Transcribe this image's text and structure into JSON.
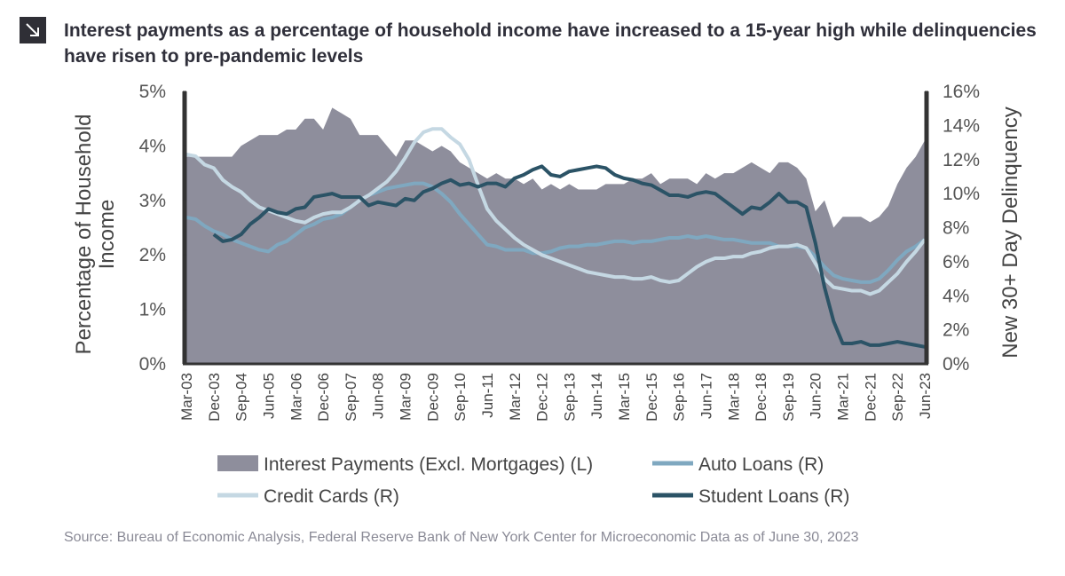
{
  "chart_data": {
    "type": "area-line",
    "title": "Interest payments as a percentage of household income have increased to a 15-year high while delinquencies have risen to pre-pandemic levels",
    "y_label": "Percentage of Household Income",
    "y2_label": "New 30+ Day Delinquency",
    "source": "Source: Bureau of Economic Analysis, Federal Reserve Bank of New York Center for Microeconomic Data as of June 30, 2023",
    "categories": [
      "Mar-03",
      null,
      null,
      "Dec-03",
      null,
      null,
      "Sep-04",
      null,
      null,
      "Jun-05",
      null,
      null,
      "Mar-06",
      null,
      null,
      "Dec-06",
      null,
      null,
      "Sep-07",
      null,
      null,
      "Jun-08",
      null,
      null,
      "Mar-09",
      null,
      null,
      "Dec-09",
      null,
      null,
      "Sep-10",
      null,
      null,
      "Jun-11",
      null,
      null,
      "Mar-12",
      null,
      null,
      "Dec-12",
      null,
      null,
      "Sep-13",
      null,
      null,
      "Jun-14",
      null,
      null,
      "Mar-15",
      null,
      null,
      "Dec-15",
      null,
      null,
      "Sep-16",
      null,
      null,
      "Jun-17",
      null,
      null,
      "Mar-18",
      null,
      null,
      "Dec-18",
      null,
      null,
      "Sep-19",
      null,
      null,
      "Jun-20",
      null,
      null,
      "Mar-21",
      null,
      null,
      "Dec-21",
      null,
      null,
      "Sep-22",
      null,
      null,
      "Jun-23"
    ],
    "ylim": [
      0,
      5
    ],
    "yticks": [
      {
        "value": 0,
        "label": "0%"
      },
      {
        "value": 1,
        "label": "1%"
      },
      {
        "value": 2,
        "label": "2%"
      },
      {
        "value": 3,
        "label": "3%"
      },
      {
        "value": 4,
        "label": "4%"
      },
      {
        "value": 5,
        "label": "5%"
      }
    ],
    "y2lim": [
      0,
      16
    ],
    "y2ticks": [
      {
        "value": 0,
        "label": "0%"
      },
      {
        "value": 2,
        "label": "2%"
      },
      {
        "value": 4,
        "label": "4%"
      },
      {
        "value": 6,
        "label": "6%"
      },
      {
        "value": 8,
        "label": "8%"
      },
      {
        "value": 10,
        "label": "10%"
      },
      {
        "value": 12,
        "label": "12%"
      },
      {
        "value": 14,
        "label": "14%"
      },
      {
        "value": 16,
        "label": "16%"
      }
    ],
    "grid": false,
    "series": [
      {
        "name": "Interest Payments (Excl. Mortgages) (L)",
        "type": "area",
        "axis": "y",
        "color": "#8e8e9c",
        "values": [
          3.8,
          3.8,
          3.8,
          3.8,
          3.8,
          3.8,
          4.0,
          4.1,
          4.2,
          4.2,
          4.2,
          4.3,
          4.3,
          4.5,
          4.5,
          4.3,
          4.7,
          4.6,
          4.5,
          4.2,
          4.2,
          4.2,
          4.0,
          3.8,
          4.1,
          4.1,
          4.0,
          3.9,
          4.0,
          3.9,
          3.7,
          3.6,
          3.5,
          3.4,
          3.5,
          3.4,
          3.4,
          3.3,
          3.4,
          3.2,
          3.3,
          3.2,
          3.3,
          3.2,
          3.2,
          3.2,
          3.3,
          3.3,
          3.3,
          3.4,
          3.4,
          3.5,
          3.3,
          3.4,
          3.4,
          3.4,
          3.3,
          3.5,
          3.4,
          3.5,
          3.5,
          3.6,
          3.7,
          3.6,
          3.5,
          3.7,
          3.7,
          3.6,
          3.4,
          2.8,
          3.0,
          2.5,
          2.7,
          2.7,
          2.7,
          2.6,
          2.7,
          2.9,
          3.3,
          3.6,
          3.8,
          4.1
        ]
      },
      {
        "name": "Auto Loans (R)",
        "type": "line",
        "axis": "y2",
        "color": "#7fa8c0",
        "values": [
          8.6,
          8.5,
          8.1,
          7.8,
          7.6,
          7.3,
          7.1,
          6.9,
          6.7,
          6.6,
          7.0,
          7.2,
          7.6,
          8.0,
          8.2,
          8.5,
          8.6,
          8.8,
          9.2,
          9.6,
          9.9,
          10.1,
          10.3,
          10.4,
          10.5,
          10.6,
          10.6,
          10.4,
          10.0,
          9.5,
          8.8,
          8.2,
          7.6,
          7.0,
          6.9,
          6.7,
          6.7,
          6.7,
          6.5,
          6.5,
          6.6,
          6.8,
          6.9,
          6.9,
          7.0,
          7.0,
          7.1,
          7.2,
          7.2,
          7.1,
          7.2,
          7.2,
          7.3,
          7.4,
          7.4,
          7.5,
          7.4,
          7.5,
          7.4,
          7.3,
          7.3,
          7.2,
          7.1,
          7.1,
          7.1,
          6.9,
          6.9,
          6.9,
          6.8,
          6.3,
          5.7,
          5.2,
          5.0,
          4.9,
          4.8,
          4.8,
          5.0,
          5.5,
          6.1,
          6.6,
          6.9,
          7.3
        ]
      },
      {
        "name": "Credit Cards (R)",
        "type": "line",
        "axis": "y2",
        "color": "#c5d8e3",
        "values": [
          12.3,
          12.2,
          11.7,
          11.5,
          10.8,
          10.4,
          10.1,
          9.6,
          9.2,
          9.0,
          8.8,
          8.6,
          8.4,
          8.3,
          8.6,
          8.8,
          8.9,
          8.9,
          9.2,
          9.6,
          9.9,
          10.3,
          10.7,
          11.3,
          12.1,
          13.0,
          13.6,
          13.8,
          13.8,
          13.3,
          12.9,
          12.0,
          10.5,
          9.1,
          8.4,
          7.9,
          7.4,
          7.0,
          6.7,
          6.4,
          6.2,
          6.0,
          5.8,
          5.6,
          5.4,
          5.3,
          5.2,
          5.1,
          5.1,
          5.0,
          5.0,
          5.1,
          4.9,
          4.8,
          4.9,
          5.3,
          5.7,
          6.0,
          6.2,
          6.2,
          6.3,
          6.3,
          6.5,
          6.6,
          6.8,
          6.9,
          6.9,
          7.0,
          6.8,
          5.9,
          5.0,
          4.5,
          4.4,
          4.3,
          4.3,
          4.1,
          4.3,
          4.8,
          5.3,
          6.0,
          6.6,
          7.3
        ]
      },
      {
        "name": "Student Loans (R)",
        "type": "line",
        "axis": "y2",
        "color": "#2b5366",
        "values": [
          null,
          null,
          null,
          7.6,
          7.2,
          7.3,
          7.6,
          8.2,
          8.6,
          9.1,
          8.9,
          8.8,
          9.1,
          9.2,
          9.8,
          9.9,
          10.0,
          9.8,
          9.8,
          9.8,
          9.3,
          9.5,
          9.4,
          9.3,
          9.7,
          9.6,
          10.1,
          10.3,
          10.6,
          10.8,
          10.5,
          10.6,
          10.4,
          10.6,
          10.6,
          10.4,
          10.9,
          11.1,
          11.4,
          11.6,
          11.1,
          11.0,
          11.3,
          11.4,
          11.5,
          11.6,
          11.5,
          11.1,
          10.9,
          10.8,
          10.6,
          10.5,
          10.2,
          9.9,
          9.9,
          9.8,
          10.0,
          10.1,
          10.0,
          9.6,
          9.2,
          8.8,
          9.2,
          9.1,
          9.5,
          10.0,
          9.5,
          9.5,
          9.2,
          7.1,
          4.5,
          2.5,
          1.2,
          1.2,
          1.3,
          1.1,
          1.1,
          1.2,
          1.3,
          1.2,
          1.1,
          1.0
        ]
      }
    ]
  }
}
